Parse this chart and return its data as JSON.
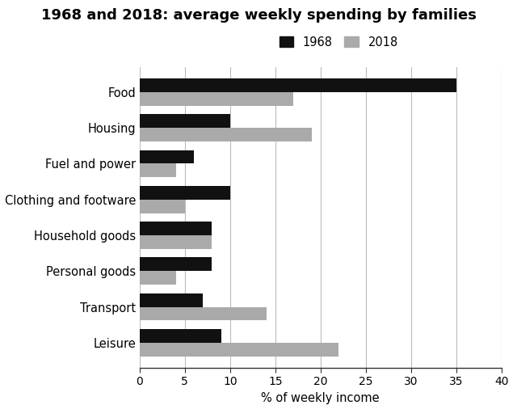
{
  "title": "1968 and 2018: average weekly spending by families",
  "xlabel": "% of weekly income",
  "categories": [
    "Food",
    "Housing",
    "Fuel and power",
    "Clothing and footware",
    "Household goods",
    "Personal goods",
    "Transport",
    "Leisure"
  ],
  "values_1968": [
    35,
    10,
    6,
    10,
    8,
    8,
    7,
    9
  ],
  "values_2018": [
    17,
    19,
    4,
    5,
    8,
    4,
    14,
    22
  ],
  "color_1968": "#111111",
  "color_2018": "#aaaaaa",
  "legend_labels": [
    "1968",
    "2018"
  ],
  "xlim": [
    0,
    40
  ],
  "xticks": [
    0,
    5,
    10,
    15,
    20,
    25,
    30,
    35,
    40
  ],
  "bar_height": 0.38,
  "grid_color": "#bbbbbb",
  "background_color": "#ffffff",
  "title_fontsize": 13,
  "label_fontsize": 10.5,
  "tick_fontsize": 10
}
